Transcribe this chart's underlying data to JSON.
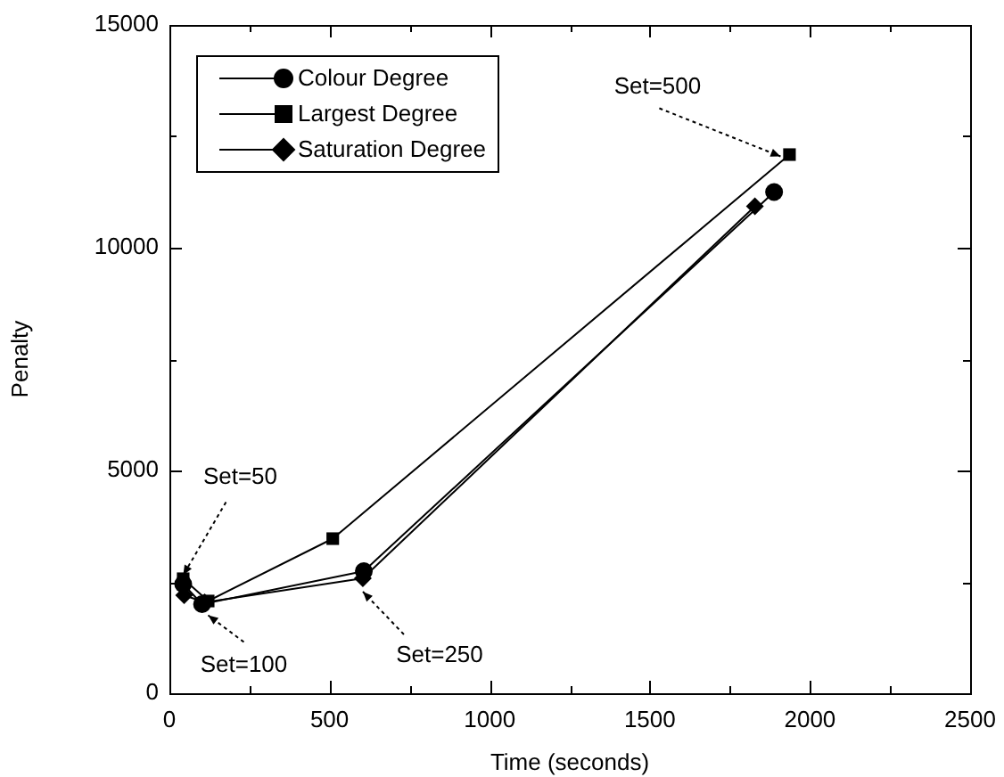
{
  "chart_data": {
    "type": "line",
    "xlabel": "Time (seconds)",
    "ylabel": "Penalty",
    "series": [
      {
        "name": "Colour Degree",
        "color": "#000000",
        "marker": "circle",
        "x": [
          43,
          102,
          607,
          1888
        ],
        "values": [
          2450,
          2000,
          2740,
          11250
        ]
      },
      {
        "name": "Largest Degree",
        "color": "#000000",
        "marker": "square",
        "x": [
          43,
          121,
          510,
          1936
        ],
        "values": [
          2570,
          2070,
          3470,
          12090
        ]
      },
      {
        "name": "Saturation Degree",
        "color": "#000000",
        "marker": "diamond",
        "x": [
          46,
          110,
          604,
          1828
        ],
        "values": [
          2200,
          2040,
          2580,
          10930
        ]
      }
    ],
    "xlim": [
      0,
      2500
    ],
    "xticks": [
      0,
      {
        "value": 250,
        "label": null
      },
      500,
      {
        "value": 750,
        "label": null
      },
      1000,
      {
        "value": 1250,
        "label": null
      },
      1500,
      {
        "value": 1750,
        "label": null
      },
      2000,
      {
        "value": 2250,
        "label": null
      },
      2500
    ],
    "ylim": [
      0,
      15000
    ],
    "yticks": [
      0,
      {
        "value": 2500,
        "label": null
      },
      5000,
      {
        "value": 7500,
        "label": null
      },
      10000,
      {
        "value": 12500,
        "label": null
      },
      15000
    ],
    "annotations": [
      {
        "text": "Set=50",
        "x": 43,
        "y": 2650
      },
      {
        "text": "Set=100",
        "x": 121,
        "y": 1750
      },
      {
        "text": "Set=250",
        "x": 604,
        "y": 2280
      },
      {
        "text": "Set=500",
        "x": 1936,
        "y": 12090
      }
    ],
    "legend": "top left",
    "grid": false,
    "line_style": "solid"
  }
}
